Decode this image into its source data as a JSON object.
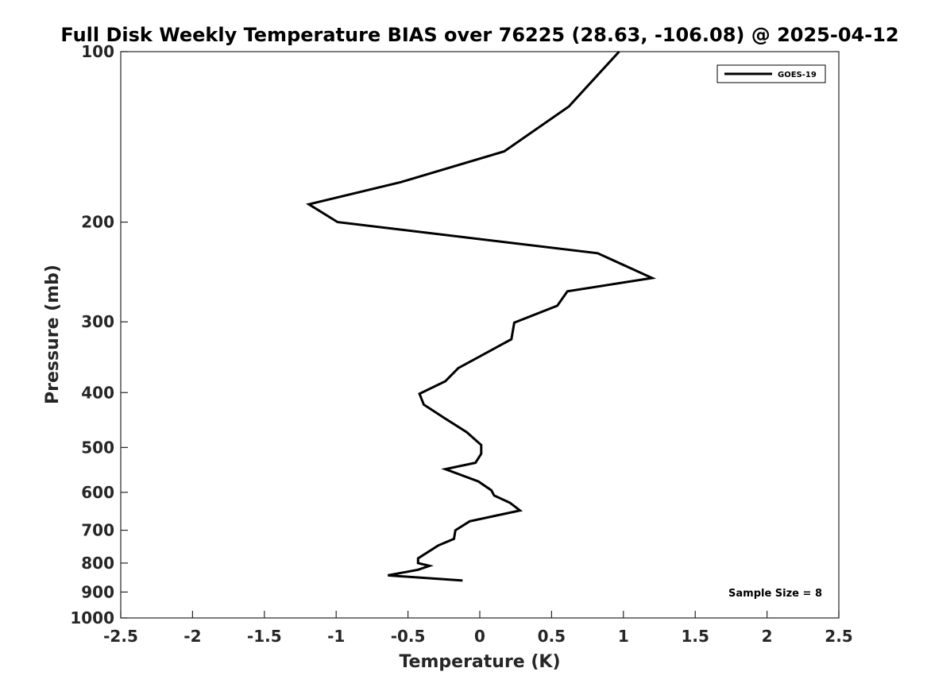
{
  "chart_data": {
    "type": "line",
    "title": "Full Disk Weekly Temperature BIAS over 76225 (28.63, -106.08) @ 2025-04-12",
    "xlabel": "Temperature (K)",
    "ylabel": "Pressure (mb)",
    "xlim": [
      -2.5,
      2.5
    ],
    "ylim": [
      1000,
      100
    ],
    "y_scale": "log",
    "y_reversed": true,
    "grid": false,
    "legend_position": "top-right",
    "x_ticks": [
      "-2.5",
      "-2",
      "-1.5",
      "-1",
      "-0.5",
      "0",
      "0.5",
      "1",
      "1.5",
      "2",
      "2.5"
    ],
    "y_ticks": [
      "100",
      "200",
      "300",
      "400",
      "500",
      "600",
      "700",
      "800",
      "900",
      "1000"
    ],
    "series": [
      {
        "name": "GOES-19",
        "color": "#000000",
        "x": [
          0.97,
          0.62,
          0.17,
          -0.55,
          -1.19,
          -0.99,
          0.82,
          1.2,
          0.61,
          0.54,
          0.24,
          0.22,
          0.03,
          -0.15,
          -0.24,
          -0.42,
          -0.39,
          -0.25,
          -0.09,
          0.01,
          0.01,
          -0.03,
          -0.24,
          -0.01,
          0.08,
          0.1,
          0.21,
          0.28,
          -0.07,
          -0.17,
          -0.18,
          -0.29,
          -0.43,
          -0.43,
          -0.35,
          -0.43,
          -0.64,
          -0.12
        ],
        "y": [
          100,
          125,
          150,
          170,
          186,
          200,
          227,
          251,
          265,
          281,
          301,
          322,
          342,
          362,
          382,
          402,
          420,
          443,
          470,
          495,
          513,
          532,
          546,
          574,
          595,
          608,
          626,
          646,
          675,
          700,
          725,
          745,
          785,
          800,
          809,
          822,
          841,
          859
        ]
      }
    ],
    "annotation": "Sample Size = 8"
  }
}
